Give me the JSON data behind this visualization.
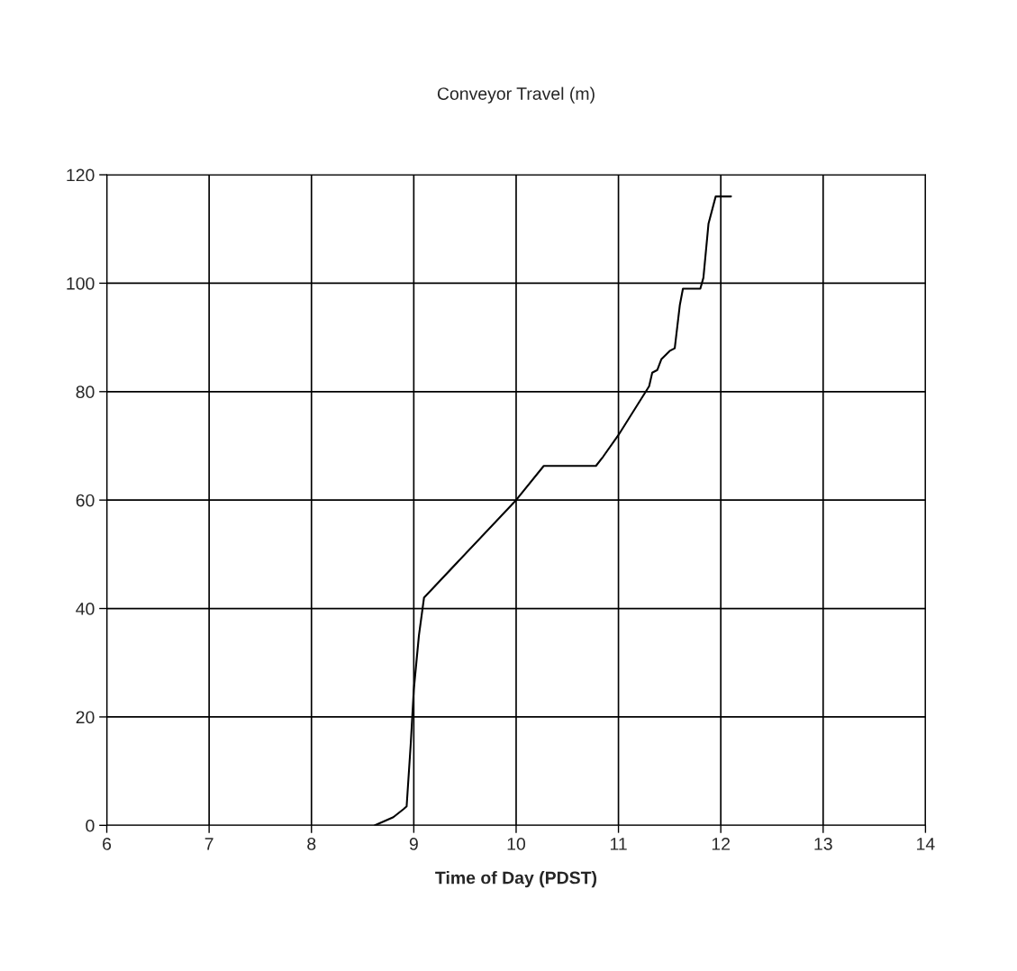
{
  "chart_data": {
    "type": "line",
    "title": "Conveyor Travel (m)",
    "xlabel": "Time of Day (PDST)",
    "x": [
      8.62,
      8.8,
      8.9,
      8.93,
      8.97,
      9.0,
      9.05,
      9.1,
      9.15,
      10.0,
      10.27,
      10.78,
      10.85,
      11.0,
      11.3,
      11.33,
      11.38,
      11.42,
      11.5,
      11.55,
      11.6,
      11.63,
      11.8,
      11.83,
      11.88,
      11.95,
      12.1
    ],
    "series": [
      {
        "color": "#000000",
        "values": [
          0,
          1.5,
          3,
          3.5,
          15,
          25,
          35,
          42,
          43,
          60,
          66.3,
          66.3,
          68,
          72,
          81,
          83.5,
          84,
          86,
          87.5,
          88,
          96,
          99,
          99,
          101,
          111,
          116,
          116
        ]
      }
    ],
    "xlim": [
      6,
      14
    ],
    "xticks": [
      6,
      7,
      8,
      9,
      10,
      11,
      12,
      13,
      14
    ],
    "ylim": [
      0,
      120
    ],
    "yticks": [
      0,
      20,
      40,
      60,
      80,
      100,
      120
    ],
    "grid": true,
    "legend": false,
    "marker": "none",
    "line_style": "solid"
  }
}
